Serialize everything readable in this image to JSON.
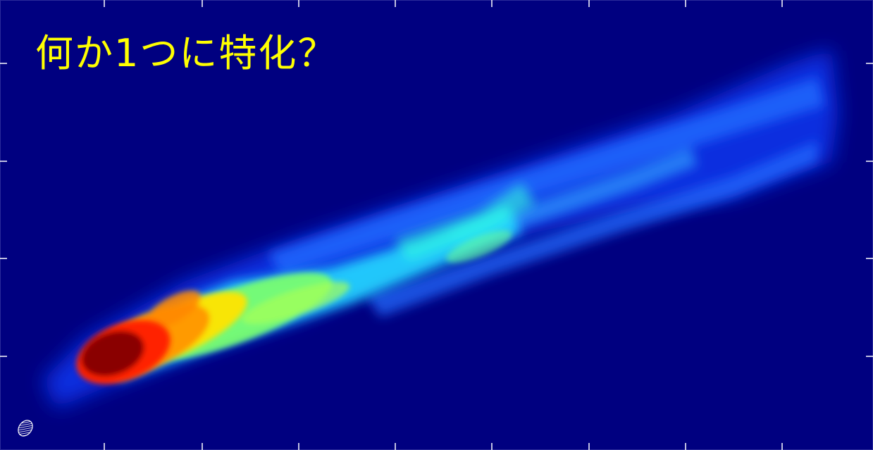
{
  "caption": "何か1つに特化？",
  "colors": {
    "background": "#000080",
    "caption": "#ffff00",
    "tick": "#ffffff"
  }
}
